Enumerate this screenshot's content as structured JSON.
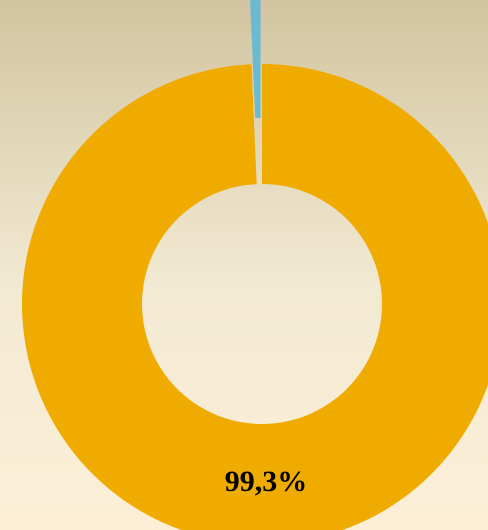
{
  "chart_data": {
    "type": "pie",
    "variant": "donut",
    "legend": "none",
    "slices": [
      {
        "value": 99.3,
        "color": "#f0ab00",
        "label": "99,3%",
        "label_visible": true,
        "exploded": false
      },
      {
        "value": 0.7,
        "color": "#6bbad1",
        "label": "",
        "label_visible": false,
        "exploded": true
      }
    ]
  }
}
